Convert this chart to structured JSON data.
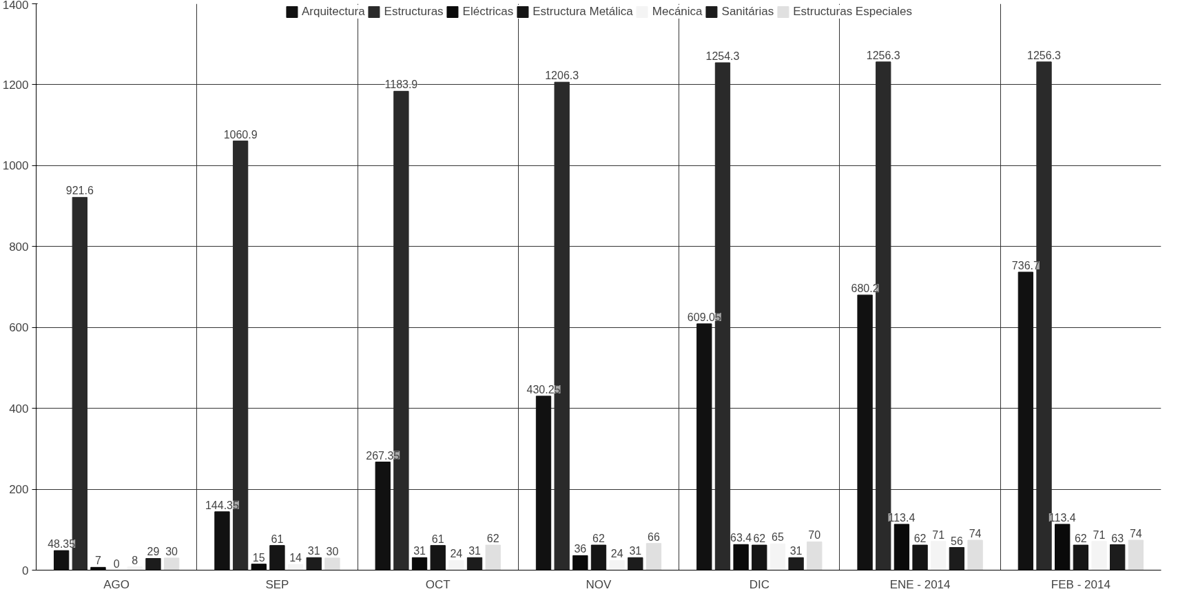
{
  "chart_data": {
    "type": "bar",
    "categories": [
      "AGO",
      "SEP",
      "OCT",
      "NOV",
      "DIC",
      "ENE - 2014",
      "FEB - 2014"
    ],
    "series": [
      {
        "name": "Arquitectura",
        "color": "#111111",
        "values": [
          48.35,
          144.35,
          267.35,
          430.25,
          609.05,
          680.2,
          736.7
        ]
      },
      {
        "name": "Estructuras",
        "color": "#2a2a2a",
        "values": [
          921.6,
          1060.9,
          1183.9,
          1206.3,
          1254.3,
          1256.3,
          1256.3
        ]
      },
      {
        "name": "Eléctricas",
        "color": "#0a0a0a",
        "values": [
          7,
          15,
          31,
          36,
          63.4,
          113.4,
          113.4
        ]
      },
      {
        "name": "Estructura Metálica",
        "color": "#151515",
        "values": [
          0,
          61,
          61,
          62,
          62,
          62,
          62
        ]
      },
      {
        "name": "Mecánica",
        "color": "#f4f4f4",
        "values": [
          8,
          14,
          24,
          24,
          65,
          71,
          71
        ]
      },
      {
        "name": "Sanitárias",
        "color": "#1c1c1c",
        "values": [
          29,
          31,
          31,
          31,
          31,
          56,
          63
        ]
      },
      {
        "name": "Estructuras Especiales",
        "color": "#e0e0e0",
        "values": [
          30,
          30,
          62,
          66,
          70,
          74,
          74
        ]
      }
    ],
    "ylim": [
      0,
      1400
    ],
    "yticks": [
      0,
      200,
      400,
      600,
      800,
      1000,
      1200,
      1400
    ],
    "grid": true,
    "legend": "top",
    "data_labels": true
  }
}
